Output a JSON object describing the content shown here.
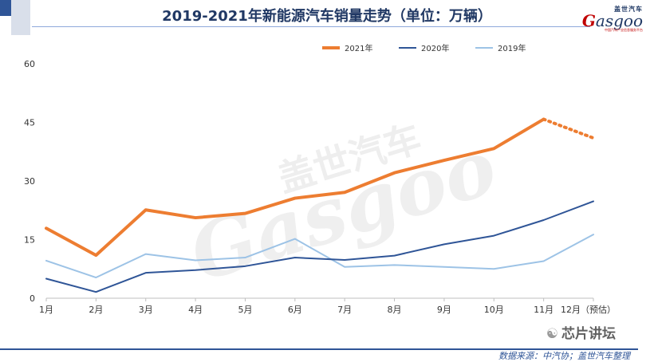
{
  "header": {
    "title": "2019-2021年新能源汽车销量走势（单位：万辆）"
  },
  "logo": {
    "cn": "盖世汽车",
    "en_prefix": "G",
    "en_rest": "asgoo",
    "tagline": "中国汽车产业信息服务平台"
  },
  "watermark": {
    "cn": "盖世汽车",
    "en": "Gasgoo"
  },
  "footer": {
    "source": "数据来源：中汽协；盖世汽车整理",
    "wechat": "芯片讲坛"
  },
  "colors": {
    "s2021": "#ed7d31",
    "s2020": "#2f5597",
    "s2019": "#9dc3e6",
    "axis": "#bfbfbf"
  },
  "chart_data": {
    "type": "line",
    "title": "2019-2021年新能源汽车销量走势（单位：万辆）",
    "xlabel": "",
    "ylabel": "",
    "ylim": [
      0,
      60
    ],
    "yticks": [
      0,
      15,
      30,
      45,
      60
    ],
    "categories": [
      "1月",
      "2月",
      "3月",
      "4月",
      "5月",
      "6月",
      "7月",
      "8月",
      "9月",
      "10月",
      "11月",
      "12月（预估）"
    ],
    "legend_position": "top-right",
    "grid": false,
    "series": [
      {
        "name": "2021年",
        "values": [
          17.9,
          11.0,
          22.6,
          20.6,
          21.7,
          25.6,
          27.1,
          32.1,
          35.3,
          38.3,
          45.8,
          41.0
        ],
        "forecast_from_index": 10
      },
      {
        "name": "2020年",
        "values": [
          5.0,
          1.6,
          6.5,
          7.2,
          8.2,
          10.4,
          9.8,
          10.9,
          13.8,
          16.0,
          20.0,
          24.8
        ]
      },
      {
        "name": "2019年",
        "values": [
          9.6,
          5.3,
          11.3,
          9.7,
          10.4,
          15.2,
          8.0,
          8.5,
          8.0,
          7.5,
          9.5,
          16.3
        ]
      }
    ]
  }
}
